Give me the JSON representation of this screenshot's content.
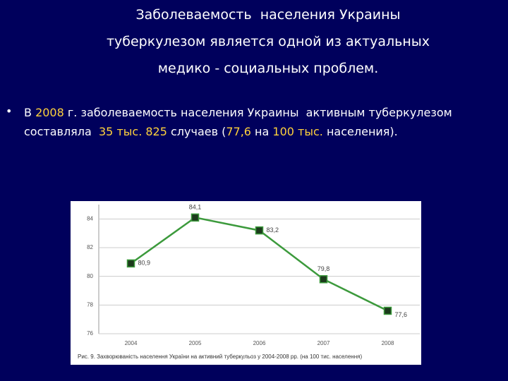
{
  "slide": {
    "title_lines": [
      "Заболеваемость  населения Украины",
      "туберкулезом является одной из актуальных",
      "медико - социальных проблем."
    ],
    "bullet": "•",
    "segments": [
      {
        "text": "В ",
        "highlight": false
      },
      {
        "text": "2008",
        "highlight": true
      },
      {
        "text": " г. заболеваемость населения Украины  активным туберкулезом  составляла  ",
        "highlight": false
      },
      {
        "text": "35 тыс. 825",
        "highlight": true
      },
      {
        "text": " случаев (",
        "highlight": false
      },
      {
        "text": "77,6",
        "highlight": true
      },
      {
        "text": " на ",
        "highlight": false
      },
      {
        "text": "100 тыс.",
        "highlight": true
      },
      {
        "text": " населения).",
        "highlight": false
      }
    ]
  },
  "chart_data": {
    "type": "line",
    "categories": [
      "2004",
      "2005",
      "2006",
      "2007",
      "2008"
    ],
    "values": [
      80.9,
      84.1,
      83.2,
      79.8,
      77.6
    ],
    "value_labels": [
      "80,9",
      "84,1",
      "83,2",
      "79,8",
      "77,6"
    ],
    "color": "#3c9a3c",
    "ylim": [
      76,
      85
    ],
    "yticks": [
      76,
      78,
      80,
      82,
      84
    ],
    "grid": true,
    "caption": "Рис. 9. Захворюваність населення України на активний туберкульоз у 2004-2008 рр. (на 100 тис. населення)"
  }
}
